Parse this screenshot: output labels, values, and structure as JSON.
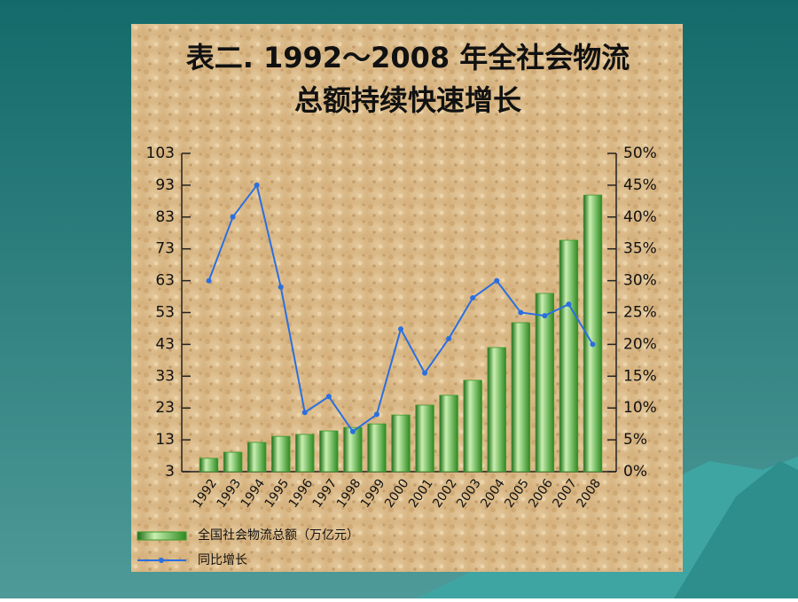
{
  "chart_data": {
    "type": "bar_line",
    "title": [
      "表二. 1992～2008  年全社会物流",
      "总额持续快速增长"
    ],
    "categories": [
      "1992",
      "1993",
      "1994",
      "1995",
      "1996",
      "1997",
      "1998",
      "1999",
      "2000",
      "2001",
      "2002",
      "2003",
      "2004",
      "2005",
      "2006",
      "2007",
      "2008"
    ],
    "series": [
      {
        "name": "全国社会物流总额（万亿元）",
        "color": "#3a9a2a",
        "type": "bar",
        "values": [
          7.2,
          9.1,
          12.2,
          14.1,
          14.7,
          15.8,
          16.9,
          18,
          20.8,
          23.9,
          27,
          31.7,
          42,
          49.8,
          59,
          75.7,
          89.9
        ]
      },
      {
        "name": "同比增长",
        "color": "#2a6fe0",
        "type": "line",
        "axis": "y2",
        "values": [
          30,
          40,
          45,
          29,
          9.3,
          11.8,
          6.3,
          9,
          22.4,
          15.5,
          20.9,
          27.3,
          30,
          25,
          24.5,
          26.3,
          20
        ]
      }
    ],
    "ylim": [
      3,
      103
    ],
    "yticks": [
      3,
      13,
      23,
      33,
      43,
      53,
      63,
      73,
      83,
      93,
      103
    ],
    "y2lim": [
      0,
      50
    ],
    "y2ticks": [
      {
        "value": 0,
        "label": "0%"
      },
      {
        "value": 5,
        "label": "5%"
      },
      {
        "value": 10,
        "label": "10%"
      },
      {
        "value": 15,
        "label": "15%"
      },
      {
        "value": 20,
        "label": "20%"
      },
      {
        "value": 25,
        "label": "25%"
      },
      {
        "value": 30,
        "label": "30%"
      },
      {
        "value": 35,
        "label": "35%"
      },
      {
        "value": 40,
        "label": "40%"
      },
      {
        "value": 45,
        "label": "45%"
      },
      {
        "value": 50,
        "label": "50%"
      }
    ],
    "legend": "bottom-left"
  }
}
